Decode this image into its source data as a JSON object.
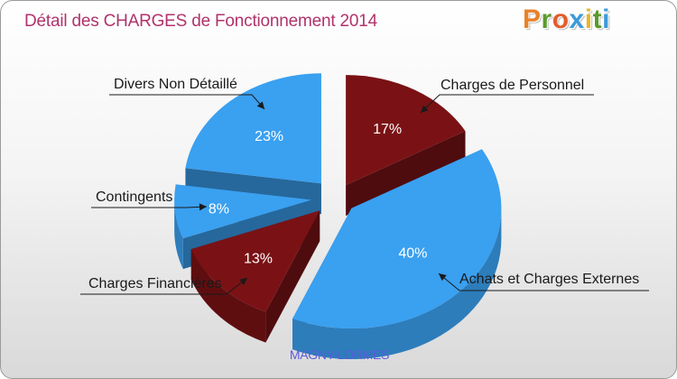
{
  "title": "Détail des CHARGES de Fonctionnement 2014",
  "logo": {
    "text": "Proxiti",
    "letters": [
      "P",
      "r",
      "o",
      "x",
      "i",
      "t",
      "i"
    ]
  },
  "footer": "MAGNY-LORMES",
  "colors": {
    "blue": "#3aa0f0",
    "dark_red": "#7a1215",
    "title": "#b0336b",
    "footer": "#5b5bdb"
  },
  "chart_data": {
    "type": "pie",
    "title": "Détail des CHARGES de Fonctionnement 2014",
    "slices": [
      {
        "label": "Charges de Personnel",
        "value": 17,
        "pct_label": "17%",
        "color": "#7a1215"
      },
      {
        "label": "Achats et Charges Externes",
        "value": 40,
        "pct_label": "40%",
        "color": "#3aa0f0"
      },
      {
        "label": "Charges Financières",
        "value": 13,
        "pct_label": "13%",
        "color": "#7a1215"
      },
      {
        "label": "Contingents",
        "value": 8,
        "pct_label": "8%",
        "color": "#3aa0f0"
      },
      {
        "label": "Divers Non Détaillé",
        "value": 23,
        "pct_label": "23%",
        "color": "#3aa0f0"
      }
    ]
  }
}
